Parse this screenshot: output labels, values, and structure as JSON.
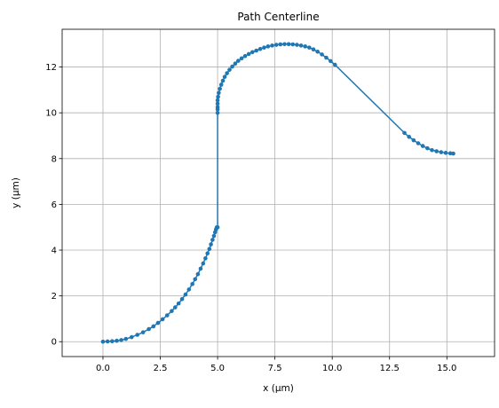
{
  "chart_data": {
    "type": "line",
    "title": "Path Centerline",
    "xlabel": "x (µm)",
    "ylabel": "y (µm)",
    "xlim": [
      -1.78,
      17.08
    ],
    "ylim": [
      -0.65,
      13.65
    ],
    "xticks": [
      0.0,
      2.5,
      5.0,
      7.5,
      10.0,
      12.5,
      15.0
    ],
    "xtick_labels": [
      "0.0",
      "2.5",
      "5.0",
      "7.5",
      "10.0",
      "12.5",
      "15.0"
    ],
    "yticks": [
      0,
      2,
      4,
      6,
      8,
      10,
      12
    ],
    "ytick_labels": [
      "0",
      "2",
      "4",
      "6",
      "8",
      "10",
      "12"
    ],
    "grid": true,
    "marker": "circle",
    "color": "#1f77b4",
    "series": [
      {
        "x": [
          0.0,
          0.2,
          0.4,
          0.6,
          0.8,
          1.0,
          1.25,
          1.5,
          1.75,
          2.0,
          2.2,
          2.4,
          2.6,
          2.8,
          3.0,
          3.15,
          3.3,
          3.45,
          3.6,
          3.75,
          3.9,
          4.02,
          4.14,
          4.26,
          4.37,
          4.47,
          4.56,
          4.64,
          4.71,
          4.78,
          4.84,
          4.89,
          4.93,
          4.96,
          4.98,
          5.0,
          5.0,
          5.0,
          5.0,
          5.0,
          5.0,
          5.02,
          5.05,
          5.1,
          5.16,
          5.23,
          5.31,
          5.41,
          5.52,
          5.64,
          5.77,
          5.9,
          6.05,
          6.2,
          6.36,
          6.52,
          6.69,
          6.86,
          7.03,
          7.2,
          7.38,
          7.56,
          7.74,
          7.92,
          8.1,
          8.28,
          8.46,
          8.64,
          8.82,
          9.0,
          9.18,
          9.36,
          9.55,
          9.74,
          9.93,
          10.12,
          13.15,
          13.35,
          13.55,
          13.75,
          13.95,
          14.15,
          14.35,
          14.55,
          14.75,
          14.95,
          15.15,
          15.28
        ],
        "y": [
          0.0,
          0.01,
          0.02,
          0.04,
          0.07,
          0.12,
          0.2,
          0.3,
          0.41,
          0.55,
          0.67,
          0.82,
          0.98,
          1.15,
          1.34,
          1.5,
          1.67,
          1.86,
          2.06,
          2.28,
          2.52,
          2.73,
          2.95,
          3.19,
          3.42,
          3.64,
          3.86,
          4.05,
          4.25,
          4.45,
          4.62,
          4.78,
          4.9,
          4.99,
          5.0,
          5.0,
          10.0,
          10.15,
          10.25,
          10.4,
          10.55,
          10.7,
          10.87,
          11.05,
          11.23,
          11.4,
          11.57,
          11.73,
          11.88,
          12.02,
          12.15,
          12.27,
          12.38,
          12.48,
          12.57,
          12.65,
          12.72,
          12.79,
          12.85,
          12.9,
          12.94,
          12.97,
          12.99,
          13.0,
          13.0,
          12.99,
          12.97,
          12.94,
          12.9,
          12.85,
          12.77,
          12.67,
          12.55,
          12.41,
          12.26,
          12.1,
          9.12,
          8.95,
          8.8,
          8.67,
          8.55,
          8.45,
          8.37,
          8.32,
          8.28,
          8.25,
          8.23,
          8.22
        ]
      }
    ]
  }
}
